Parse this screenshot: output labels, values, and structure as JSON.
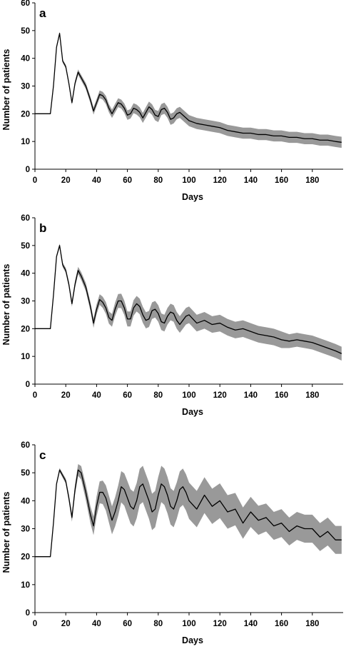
{
  "chart_data": [
    {
      "type": "area",
      "panel_label": "a",
      "xlabel": "Days",
      "ylabel": "Number of patients",
      "xlim": [
        0,
        200
      ],
      "ylim": [
        0,
        60
      ],
      "xticks": [
        0,
        20,
        40,
        60,
        80,
        100,
        120,
        140,
        160,
        180
      ],
      "yticks": [
        0,
        10,
        20,
        30,
        40,
        50,
        60
      ],
      "grid": false,
      "band_color": "#999999",
      "line_color": "#000000",
      "series": [
        {
          "x": [
            0,
            10,
            12,
            14,
            16,
            18,
            20,
            22,
            24,
            26,
            28,
            30,
            33,
            36,
            38,
            40,
            42,
            44,
            46,
            48,
            50,
            52,
            54,
            56,
            58,
            60,
            62,
            64,
            66,
            68,
            70,
            72,
            74,
            76,
            78,
            80,
            82,
            84,
            86,
            88,
            90,
            92,
            94,
            96,
            98,
            100,
            105,
            110,
            115,
            120,
            125,
            130,
            135,
            140,
            145,
            150,
            155,
            160,
            165,
            170,
            175,
            180,
            185,
            190,
            195,
            199
          ],
          "y": [
            20,
            20,
            30,
            44,
            49,
            39,
            37,
            31,
            24,
            31,
            35,
            33,
            30,
            25,
            21,
            24,
            27,
            26.5,
            25,
            22,
            20,
            22,
            24,
            23.5,
            22,
            19.5,
            20,
            22,
            21.5,
            20.5,
            18.5,
            20.5,
            22.5,
            21.5,
            19.5,
            19,
            21.5,
            22,
            20.5,
            18,
            18.5,
            20,
            20.5,
            19.5,
            18.5,
            17.5,
            16.5,
            16,
            15.5,
            15,
            14,
            13.5,
            13,
            13,
            12.5,
            12.5,
            12,
            12,
            11.5,
            11.5,
            11,
            11,
            10.5,
            10.5,
            10,
            9.7
          ],
          "band": [
            0,
            0,
            0.5,
            0.6,
            0.6,
            0.6,
            0.7,
            0.7,
            0.8,
            0.9,
            1,
            1,
            1.1,
            1.2,
            1.3,
            1.3,
            1.4,
            1.4,
            1.5,
            1.5,
            1.5,
            1.6,
            1.6,
            1.6,
            1.7,
            1.7,
            1.7,
            1.8,
            1.8,
            1.8,
            1.8,
            1.9,
            1.9,
            1.9,
            1.9,
            2,
            2,
            2,
            2,
            2,
            2,
            2,
            2,
            2,
            2,
            2,
            2,
            2,
            2,
            2,
            2,
            2,
            2,
            2,
            2,
            2,
            2,
            2,
            2,
            2,
            2,
            2,
            2,
            2,
            2,
            2
          ]
        }
      ]
    },
    {
      "type": "area",
      "panel_label": "b",
      "xlabel": "Days",
      "ylabel": "Number of patients",
      "xlim": [
        0,
        200
      ],
      "ylim": [
        0,
        60
      ],
      "xticks": [
        0,
        20,
        40,
        60,
        80,
        100,
        120,
        140,
        160,
        180
      ],
      "yticks": [
        0,
        10,
        20,
        30,
        40,
        50,
        60
      ],
      "grid": false,
      "band_color": "#999999",
      "line_color": "#000000",
      "series": [
        {
          "x": [
            0,
            10,
            12,
            14,
            16,
            18,
            20,
            22,
            24,
            26,
            28,
            30,
            33,
            36,
            38,
            40,
            42,
            44,
            46,
            48,
            50,
            52,
            54,
            56,
            58,
            60,
            62,
            64,
            66,
            68,
            70,
            72,
            74,
            76,
            78,
            80,
            82,
            84,
            86,
            88,
            90,
            92,
            94,
            96,
            98,
            100,
            105,
            110,
            115,
            120,
            125,
            130,
            135,
            140,
            145,
            150,
            155,
            160,
            165,
            170,
            175,
            180,
            185,
            190,
            195,
            199
          ],
          "y": [
            20,
            20,
            32,
            46,
            50,
            43,
            41,
            36,
            29,
            36,
            41,
            39,
            35,
            28,
            22,
            27,
            30.5,
            29.5,
            27.5,
            24,
            23,
            27,
            30,
            30,
            27.5,
            23.5,
            23.5,
            27.5,
            29,
            28,
            25,
            23,
            23.5,
            26.5,
            27,
            25.5,
            22.5,
            22,
            24.5,
            26,
            25.5,
            23,
            21.5,
            23,
            24.5,
            25,
            22,
            23,
            21.5,
            22,
            20.5,
            19.5,
            20,
            19,
            18,
            17.5,
            17,
            16,
            15.5,
            16,
            15.5,
            15,
            14,
            13,
            12,
            11
          ],
          "band": [
            0,
            0,
            0.5,
            0.6,
            0.7,
            0.8,
            0.9,
            1,
            1.1,
            1.2,
            1.3,
            1.4,
            1.5,
            1.6,
            1.7,
            1.8,
            1.9,
            2,
            2.1,
            2.2,
            2.3,
            2.4,
            2.5,
            2.6,
            2.6,
            2.7,
            2.7,
            2.8,
            2.8,
            2.8,
            2.9,
            2.9,
            2.9,
            3,
            3,
            3,
            3,
            3,
            3,
            3,
            3,
            3,
            3,
            3,
            3,
            3,
            3,
            3,
            3,
            3,
            3,
            3,
            3,
            3,
            3,
            3,
            3,
            3,
            2.5,
            2.5,
            2.5,
            2.5,
            2.5,
            2.5,
            2.5,
            2.5
          ]
        }
      ]
    },
    {
      "type": "area",
      "panel_label": "c",
      "xlabel": "Days",
      "ylabel": "Number of patients",
      "xlim": [
        0,
        200
      ],
      "ylim": [
        0,
        60
      ],
      "xticks": [
        0,
        20,
        40,
        60,
        80,
        100,
        120,
        140,
        160,
        180
      ],
      "yticks": [
        0,
        10,
        20,
        30,
        40,
        50,
        60
      ],
      "grid": false,
      "band_color": "#999999",
      "line_color": "#000000",
      "series": [
        {
          "x": [
            0,
            10,
            12,
            14,
            16,
            18,
            20,
            22,
            24,
            26,
            28,
            30,
            33,
            36,
            38,
            40,
            42,
            44,
            46,
            48,
            50,
            52,
            54,
            56,
            58,
            60,
            62,
            64,
            66,
            68,
            70,
            72,
            74,
            76,
            78,
            80,
            82,
            84,
            86,
            88,
            90,
            92,
            94,
            96,
            98,
            100,
            105,
            110,
            115,
            120,
            125,
            130,
            135,
            140,
            145,
            150,
            155,
            160,
            165,
            170,
            175,
            180,
            185,
            190,
            195,
            199
          ],
          "y": [
            20,
            20,
            32,
            46,
            51,
            49,
            47,
            41,
            34,
            44,
            51,
            50,
            43,
            35,
            31,
            38,
            43,
            43,
            41,
            37,
            33,
            36,
            40,
            45,
            44,
            41,
            38,
            37,
            40,
            45,
            46,
            43,
            40,
            36,
            37,
            42,
            46,
            45,
            42,
            38,
            37,
            40,
            44,
            45,
            43,
            40,
            37,
            42,
            38,
            40,
            36,
            37,
            32,
            36,
            33,
            34,
            31,
            32,
            29,
            31,
            30,
            30,
            27,
            29,
            26,
            26
          ],
          "band": [
            0,
            0,
            0.5,
            0.6,
            0.7,
            0.8,
            0.9,
            1.2,
            1.5,
            1.8,
            2.1,
            2.4,
            2.7,
            3,
            3.3,
            3.6,
            3.9,
            4.2,
            4.5,
            4.8,
            5,
            5.2,
            5.4,
            5.6,
            5.8,
            6,
            6.1,
            6.2,
            6.3,
            6.4,
            6.5,
            6.5,
            6.5,
            6.5,
            6.5,
            6.5,
            6.5,
            6.5,
            6.5,
            6.5,
            6.5,
            6.5,
            6.5,
            6.5,
            6.5,
            6.5,
            6.5,
            6.4,
            6.3,
            6.2,
            6,
            5.8,
            5.6,
            5.4,
            5.2,
            5,
            5,
            5,
            5,
            5,
            5,
            5,
            5,
            5,
            5,
            5
          ]
        }
      ]
    }
  ]
}
